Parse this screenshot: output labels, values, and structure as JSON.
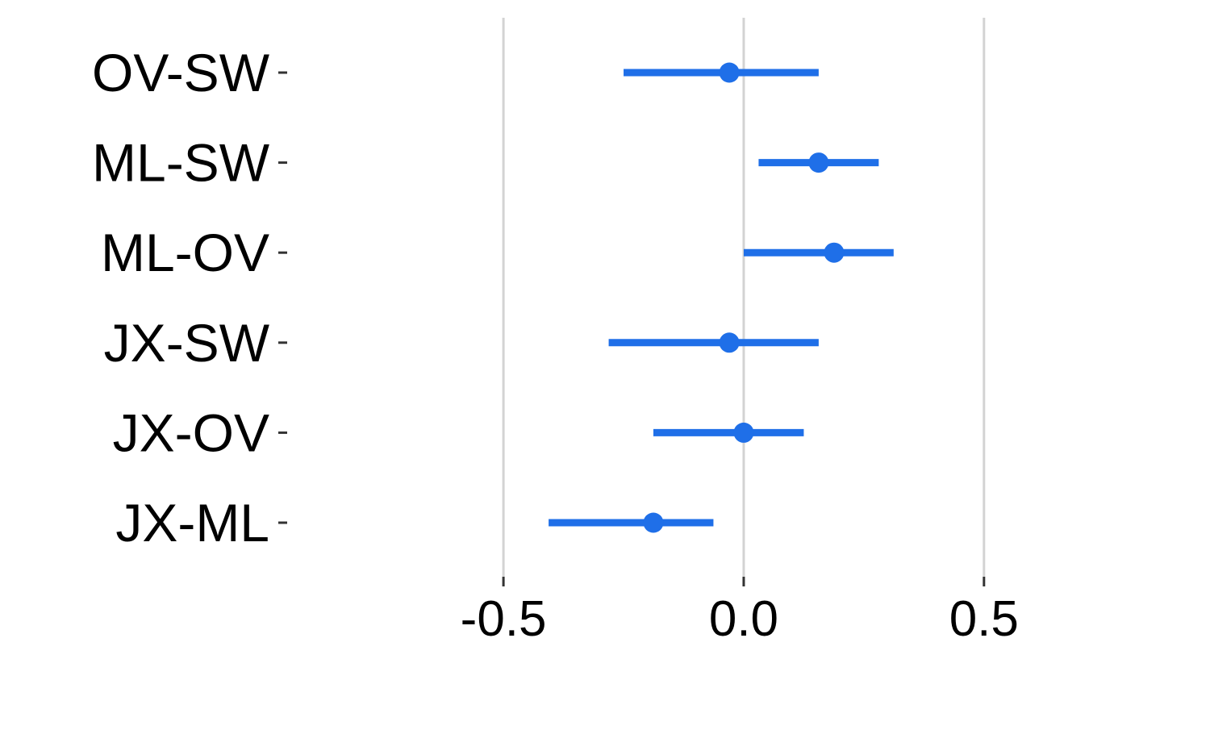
{
  "chart_data": {
    "type": "scatter",
    "style": "point-range",
    "categories": [
      "OV-SW",
      "ML-SW",
      "ML-OV",
      "JX-SW",
      "JX-OV",
      "JX-ML"
    ],
    "series": [
      {
        "estimates": [
          -0.03,
          0.156,
          0.188,
          -0.03,
          0.0,
          -0.188
        ],
        "lower": [
          -0.25,
          0.031,
          0.0,
          -0.281,
          -0.188,
          -0.406
        ],
        "upper": [
          0.156,
          0.281,
          0.312,
          0.156,
          0.125,
          -0.063
        ]
      }
    ],
    "xlim": [
      -0.94,
      0.92
    ],
    "xticks": [
      -0.5,
      0.0,
      0.5
    ],
    "xtick_labels": [
      "-0.5",
      "0.0",
      "0.5"
    ],
    "xlabel": "",
    "ylabel": "",
    "title": "",
    "grid": "vertical major gridlines",
    "colors": {
      "point": "#1f6fe8",
      "grid": "#d3d3d3",
      "axis_text": "#000000",
      "tick": "#333333"
    }
  }
}
